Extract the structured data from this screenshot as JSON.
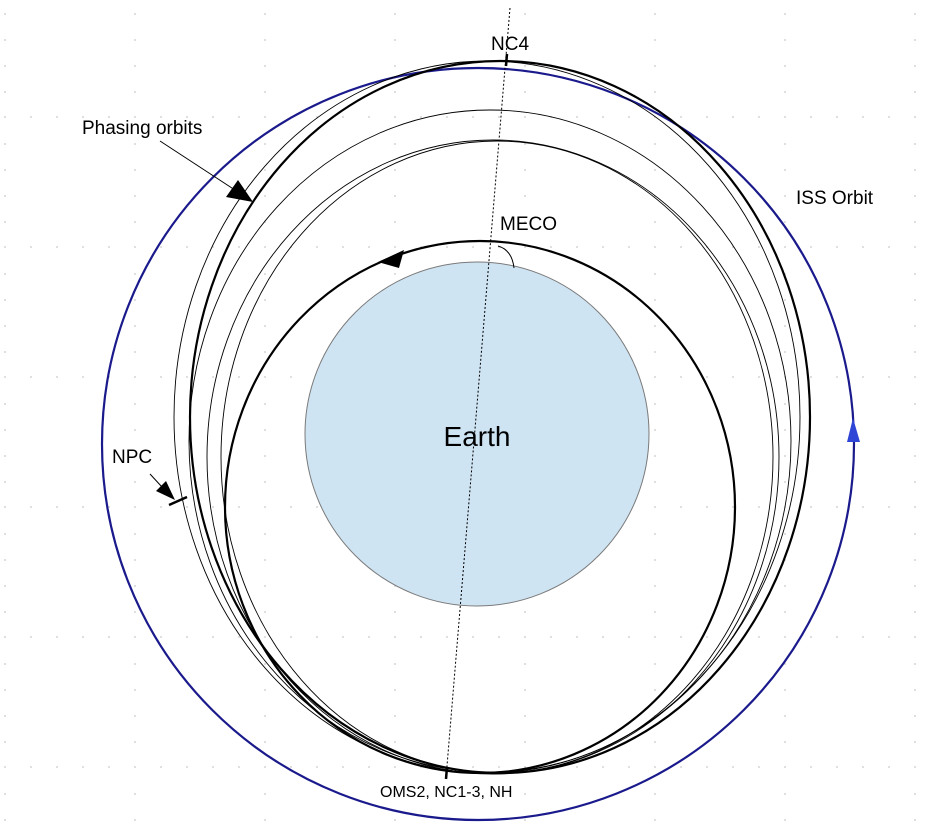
{
  "diagram": {
    "labels": {
      "earth": "Earth",
      "iss_orbit": "ISS Orbit",
      "phasing_orbits": "Phasing orbits",
      "meco": "MECO",
      "nc4": "NC4",
      "npc": "NPC",
      "oms2": "OMS2, NC1-3, NH"
    },
    "colors": {
      "earth_fill": "#cfe4f3",
      "iss_orbit": "#1a1a8c",
      "iss_arrow": "#2f45d6",
      "orbit_line": "#000000"
    }
  }
}
